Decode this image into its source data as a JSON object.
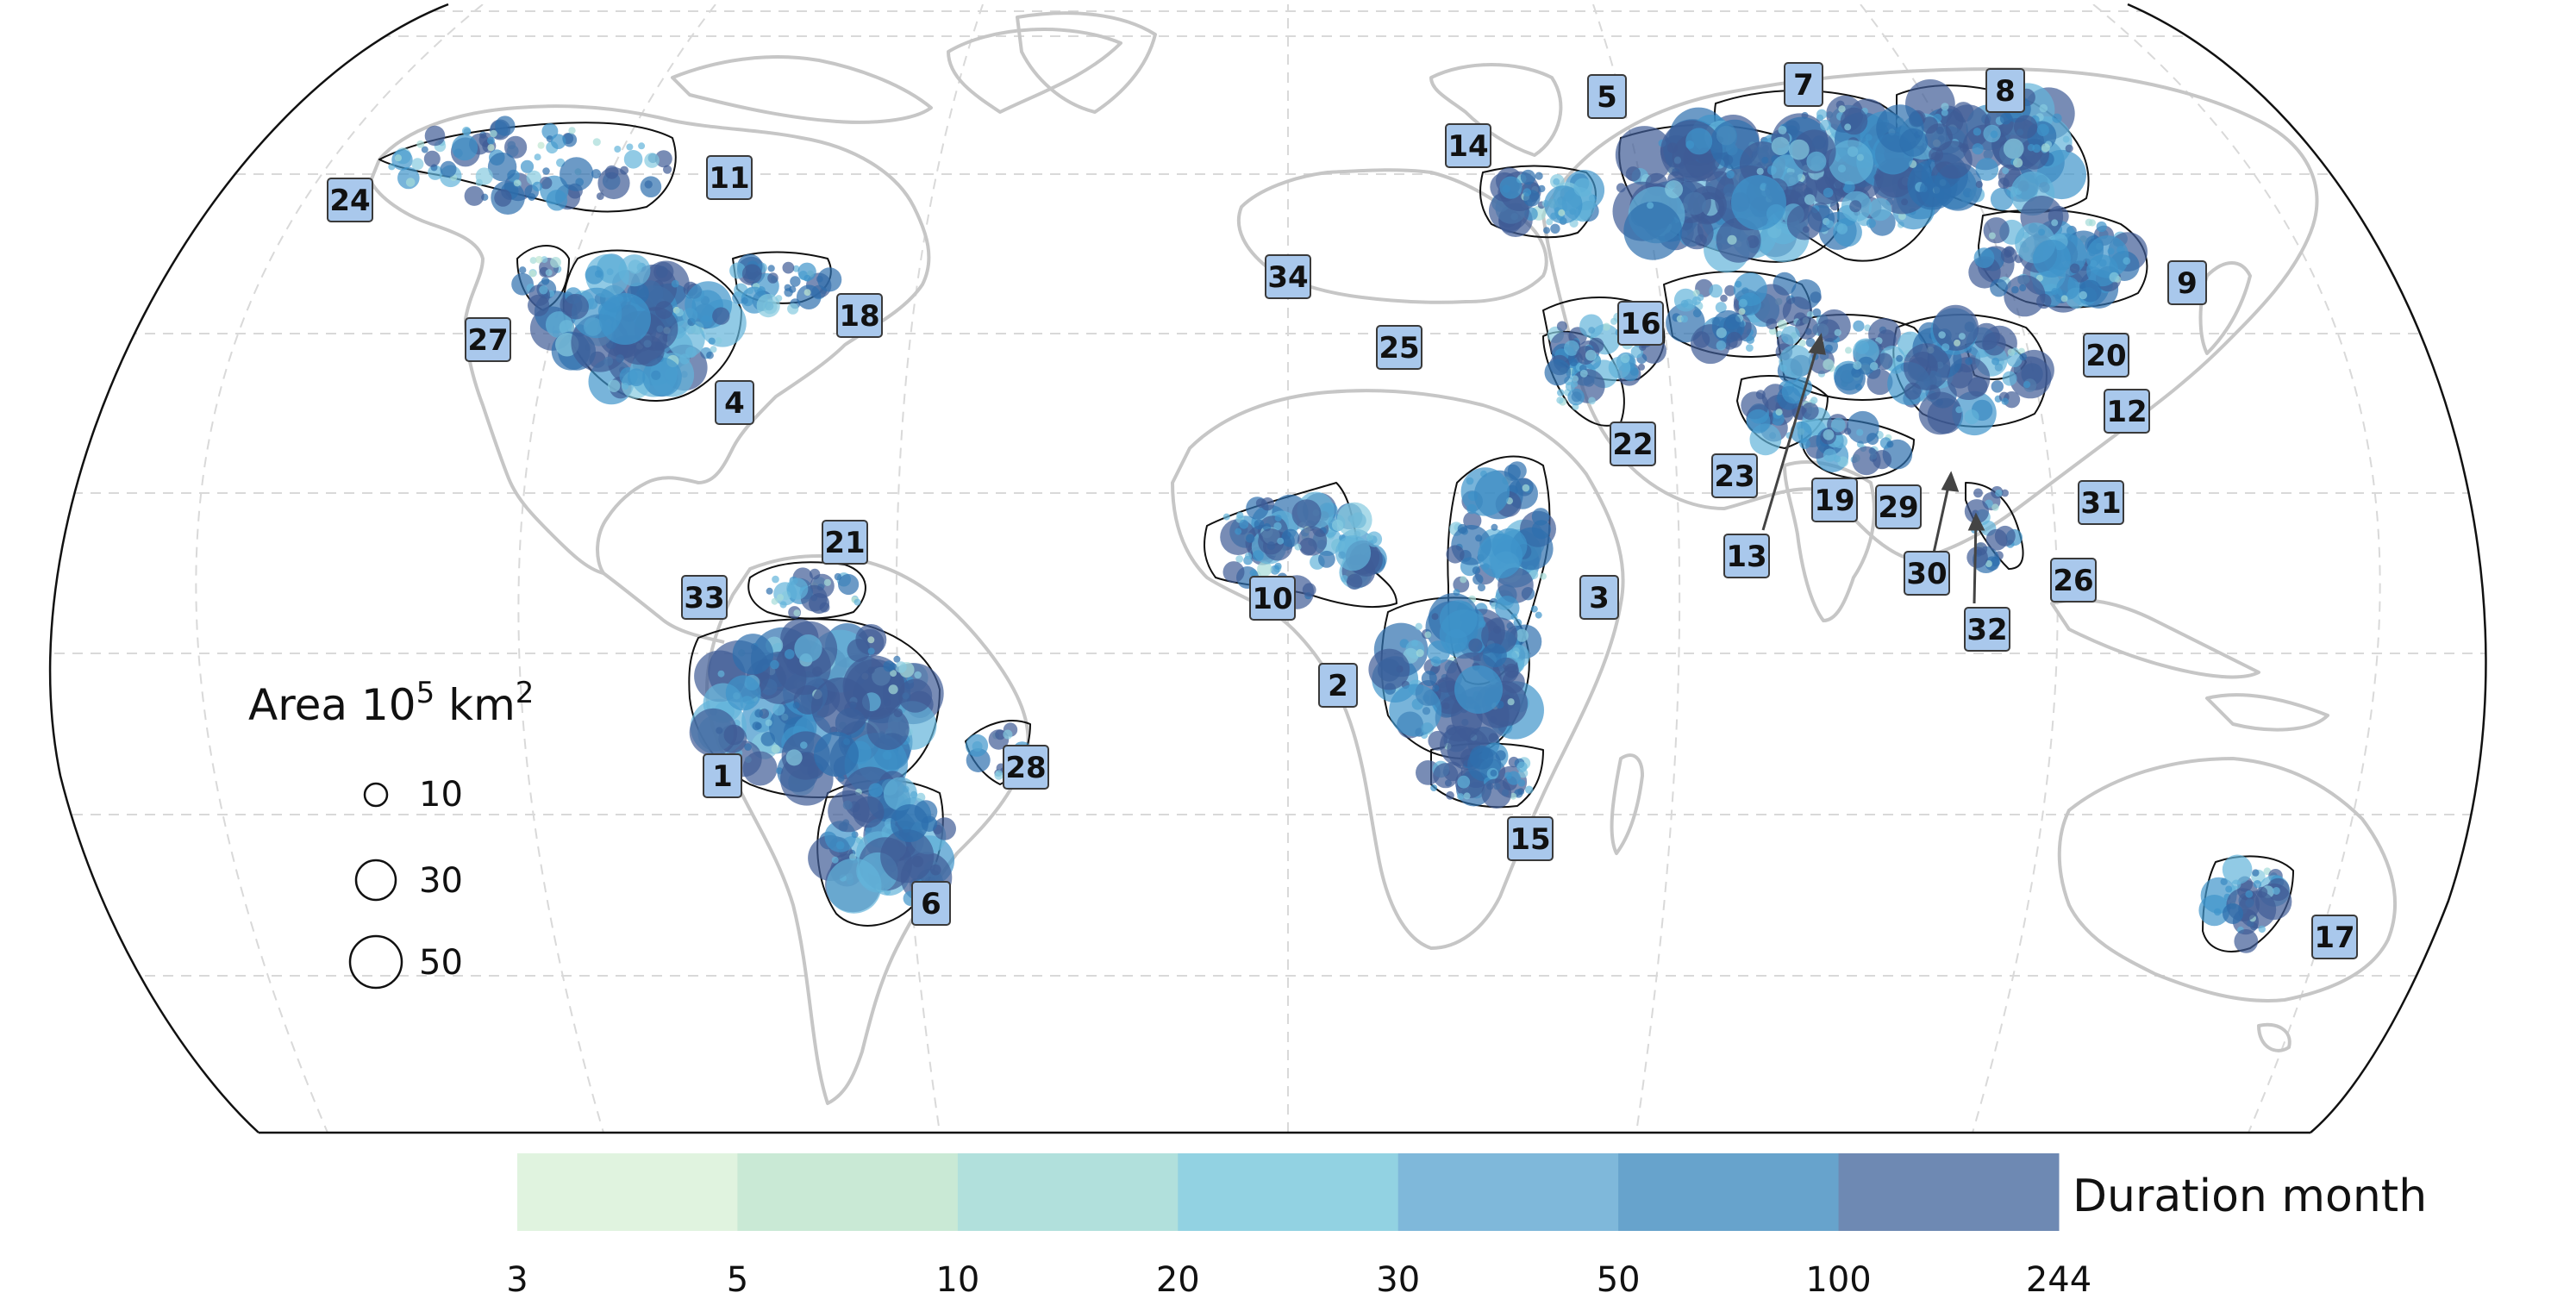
{
  "map": {
    "projection": "Robinson-like world map",
    "basin_labels": [
      "1",
      "2",
      "3",
      "4",
      "5",
      "6",
      "7",
      "8",
      "9",
      "10",
      "11",
      "12",
      "13",
      "14",
      "15",
      "16",
      "17",
      "18",
      "19",
      "20",
      "21",
      "22",
      "23",
      "24",
      "25",
      "26",
      "27",
      "28",
      "29",
      "30",
      "31",
      "32",
      "33",
      "34"
    ]
  },
  "size_legend": {
    "title": "Area 10",
    "title_exp": "5",
    "title_unit": " km",
    "title_unit_exp": "2",
    "entries": [
      "10",
      "30",
      "50"
    ]
  },
  "colorbar": {
    "title": "Duration month",
    "ticks": [
      "3",
      "5",
      "10",
      "20",
      "30",
      "50",
      "100",
      "244"
    ],
    "colors": [
      "#e0f3df",
      "#c9e9d5",
      "#b1e0dc",
      "#92d2e2",
      "#7fb8da",
      "#67a3cc",
      "#6e89b3"
    ]
  },
  "bubble_colors": [
    "#d6efd6",
    "#bfe6d2",
    "#a5dbd8",
    "#86cbe0",
    "#63b3da",
    "#3f94cb",
    "#2e6fae",
    "#3e5b96"
  ]
}
